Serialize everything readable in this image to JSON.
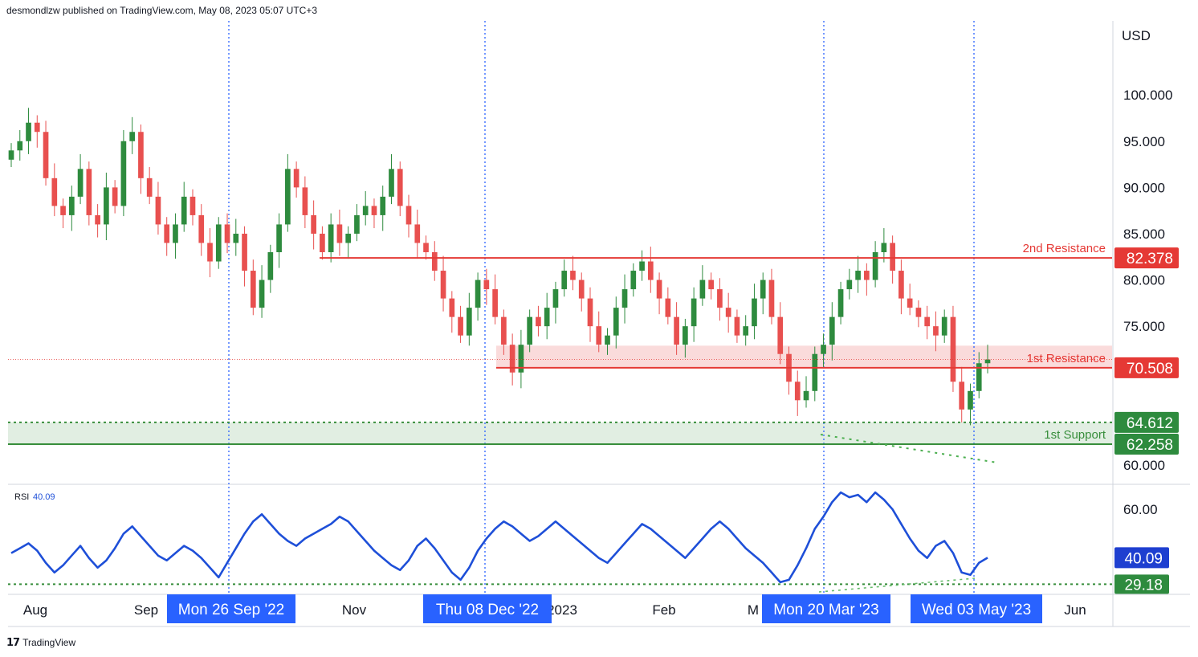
{
  "header": {
    "published": "desmondlzw published on TradingView.com, May 08, 2023 05:07 UTC+3"
  },
  "footer": {
    "logo_text": "TradingView"
  },
  "colors": {
    "up": "#26a69a",
    "down": "#ef5350",
    "up_candle": "#2e8b3e",
    "down_candle": "#e8504f",
    "resistance": "#e53935",
    "support": "#388e3c",
    "rsi_line": "#1e4fd8",
    "vline": "#2962ff",
    "label_bg": "#2962ff",
    "rsi_value_bg": "#1e3fd0",
    "support_label_bg": "#2e8b3e"
  },
  "chart_data": [
    {
      "type": "candlestick",
      "title": "",
      "currency": "USD",
      "ylim": [
        58,
        108
      ],
      "y_ticks": [
        "100.000",
        "95.000",
        "90.000",
        "85.000",
        "80.000",
        "75.000",
        "60.000"
      ],
      "x_ticks": [
        "Aug",
        "Sep",
        "Nov",
        "2023",
        "Feb",
        "M",
        "Jun"
      ],
      "highlighted_dates": [
        "Mon 26 Sep '22",
        "Thu 08 Dec '22",
        "Mon 20 Mar '23",
        "Wed 03 May '23"
      ],
      "levels": [
        {
          "name": "2nd Resistance",
          "value": 82.378,
          "label": "82.378"
        },
        {
          "name": "1st Resistance",
          "value": 70.508,
          "label": "70.508"
        },
        {
          "name": "1st Support",
          "value": 64.612,
          "label": "64.612"
        },
        {
          "name": "1st Support",
          "value": 62.258,
          "label": "62.258"
        }
      ],
      "annotations": [
        "2nd Resistance",
        "1st Resistance",
        "1st Support"
      ],
      "closes": [
        94,
        95,
        97,
        96,
        91,
        88,
        87,
        89,
        92,
        87,
        86,
        90,
        88,
        95,
        96,
        91,
        89,
        86,
        84,
        86,
        89,
        87,
        84,
        82,
        86,
        84,
        85,
        81,
        77,
        80,
        83,
        86,
        92,
        90,
        87,
        85,
        83,
        86,
        84,
        85,
        87,
        88,
        87,
        89,
        92,
        88,
        86,
        84,
        83,
        81,
        78,
        76,
        74,
        77,
        80,
        79,
        76,
        73,
        70,
        73,
        76,
        75,
        77,
        79,
        81,
        80,
        78,
        75,
        73,
        74,
        77,
        79,
        81,
        82,
        80,
        78,
        76,
        73,
        75,
        78,
        80,
        79,
        77,
        76,
        74,
        75,
        78,
        80,
        76,
        72,
        69,
        67,
        68,
        72,
        73,
        76,
        79,
        80,
        81,
        80,
        83,
        84,
        81,
        78,
        77,
        76,
        75,
        74,
        76,
        69,
        66,
        68,
        71,
        71.4
      ]
    },
    {
      "type": "line",
      "name": "RSI",
      "label": "RSI",
      "current": 40.09,
      "value_label": "40.09",
      "ylim": [
        26,
        70
      ],
      "y_ticks": [
        "60.00"
      ],
      "levels": [
        {
          "value": 29.18,
          "label": "29.18"
        }
      ],
      "values": [
        42,
        44,
        46,
        43,
        38,
        34,
        37,
        41,
        45,
        40,
        36,
        39,
        44,
        50,
        53,
        49,
        45,
        41,
        39,
        42,
        45,
        43,
        40,
        36,
        32,
        38,
        44,
        50,
        55,
        58,
        54,
        50,
        47,
        45,
        48,
        50,
        52,
        54,
        57,
        55,
        51,
        47,
        43,
        40,
        37,
        35,
        39,
        45,
        48,
        44,
        39,
        34,
        31,
        36,
        43,
        48,
        52,
        55,
        53,
        50,
        47,
        49,
        52,
        55,
        52,
        49,
        46,
        43,
        40,
        38,
        42,
        46,
        50,
        54,
        52,
        49,
        46,
        43,
        40,
        44,
        48,
        52,
        55,
        52,
        48,
        44,
        41,
        38,
        34,
        30,
        31,
        37,
        44,
        52,
        57,
        63,
        67,
        65,
        66,
        63,
        67,
        64,
        60,
        54,
        48,
        43,
        40,
        45,
        47,
        42,
        34,
        33,
        38,
        40.09
      ]
    }
  ]
}
